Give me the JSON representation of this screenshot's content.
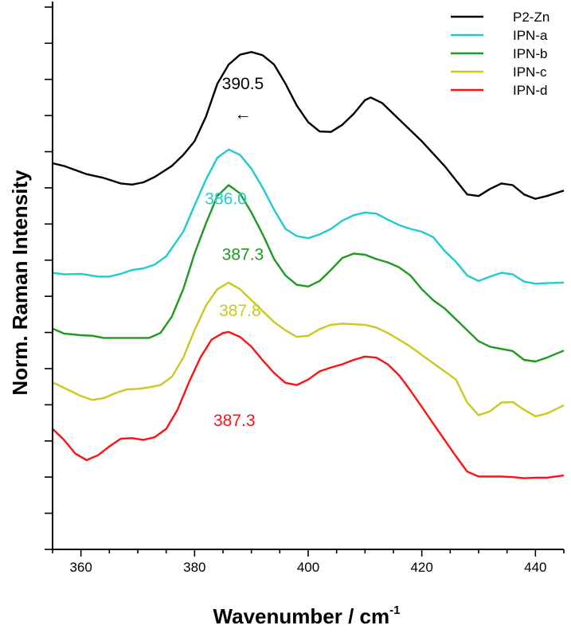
{
  "chart_data": {
    "type": "line",
    "xlabel": "Wavenumber / cm",
    "xlabel_superscript": "-1",
    "ylabel": "Norm. Raman Intensity",
    "xlim": [
      355,
      445
    ],
    "ylim": [
      0,
      100
    ],
    "x_ticks": [
      360,
      380,
      400,
      420,
      440
    ],
    "y_ticks_shown_without_labels": true,
    "grid": false,
    "legend_position": "top-right",
    "series": [
      {
        "name": "P2-Zn",
        "color": "#000000",
        "x": [
          355,
          357,
          361,
          364,
          367,
          369,
          371,
          373,
          376,
          378,
          380,
          382,
          384,
          386,
          388,
          390,
          392,
          394,
          396,
          398,
          400,
          402,
          404,
          406,
          408,
          410,
          411,
          413,
          416,
          420,
          424,
          428,
          430,
          432,
          434,
          436,
          438,
          440,
          442,
          445
        ],
        "y": [
          70.5,
          70.0,
          68.5,
          67.8,
          66.8,
          66.6,
          67.0,
          68.0,
          70.0,
          72.0,
          74.5,
          79.0,
          85.0,
          88.5,
          90.3,
          90.8,
          90.2,
          88.5,
          85.0,
          81.0,
          78.0,
          76.3,
          76.2,
          77.5,
          79.5,
          82.0,
          82.5,
          81.5,
          78.5,
          74.5,
          70.0,
          64.8,
          64.5,
          65.8,
          66.8,
          66.5,
          64.8,
          64.0,
          64.5,
          65.5
        ],
        "label": "390.5"
      },
      {
        "name": "IPN-a",
        "color": "#1fcbcf",
        "x": [
          355,
          357,
          360,
          363,
          365,
          367,
          369,
          371,
          373,
          375,
          378,
          380,
          382,
          384,
          386,
          388,
          390,
          392,
          394,
          396,
          398,
          400,
          402,
          404,
          406,
          408,
          410,
          412,
          414,
          416,
          418,
          420,
          422,
          424,
          426,
          428,
          430,
          432,
          434,
          436,
          438,
          440,
          442,
          445
        ],
        "y": [
          50.5,
          50.2,
          50.3,
          49.8,
          49.8,
          50.3,
          51.0,
          51.3,
          52.0,
          53.5,
          58.0,
          62.8,
          67.5,
          71.5,
          73.0,
          72.0,
          69.5,
          66.0,
          62.0,
          58.5,
          57.2,
          56.8,
          57.5,
          58.5,
          60.0,
          61.0,
          61.5,
          61.3,
          60.2,
          59.2,
          58.5,
          58.0,
          57.0,
          54.5,
          52.5,
          50.0,
          49.0,
          49.8,
          50.5,
          50.2,
          48.9,
          48.5,
          48.6,
          48.7
        ],
        "label": "386.0"
      },
      {
        "name": "IPN-b",
        "color": "#1e9a1e",
        "x": [
          355,
          357,
          360,
          362,
          364,
          366,
          368,
          370,
          372,
          374,
          376,
          378,
          380,
          382,
          384,
          386,
          388,
          390,
          392,
          394,
          396,
          398,
          400,
          402,
          404,
          406,
          408,
          410,
          412,
          414,
          416,
          418,
          420,
          422,
          424,
          426,
          428,
          430,
          432,
          434,
          436,
          438,
          440,
          442,
          445
        ],
        "y": [
          40.3,
          39.4,
          39.1,
          39.0,
          38.6,
          38.6,
          38.6,
          38.6,
          38.6,
          39.5,
          42.5,
          47.5,
          54.0,
          59.5,
          64.5,
          66.5,
          65.0,
          61.5,
          57.5,
          53.0,
          50.0,
          48.3,
          48.0,
          49.0,
          51.0,
          53.2,
          54.0,
          53.8,
          53.0,
          52.4,
          51.5,
          50.0,
          47.5,
          45.5,
          44.0,
          42.0,
          40.0,
          38.0,
          37.0,
          36.6,
          36.2,
          34.6,
          34.3,
          35.0,
          36.3
        ],
        "label": "387.3"
      },
      {
        "name": "IPN-c",
        "color": "#c9c91f",
        "x": [
          355,
          357,
          360,
          362,
          364,
          366,
          368,
          370,
          372,
          374,
          376,
          378,
          380,
          382,
          384,
          386,
          388,
          390,
          392,
          394,
          396,
          398,
          400,
          402,
          404,
          406,
          408,
          410,
          412,
          414,
          416,
          418,
          420,
          422,
          424,
          426,
          428,
          430,
          432,
          434,
          436,
          438,
          440,
          442,
          445
        ],
        "y": [
          30.5,
          29.5,
          28.0,
          27.3,
          27.6,
          28.5,
          29.2,
          29.3,
          29.6,
          30.0,
          31.5,
          35.0,
          40.0,
          44.5,
          47.5,
          48.7,
          47.5,
          45.5,
          43.5,
          41.5,
          40.0,
          38.8,
          39.0,
          40.2,
          41.0,
          41.2,
          41.1,
          41.0,
          40.5,
          39.5,
          38.3,
          37.0,
          35.5,
          34.0,
          32.5,
          31.0,
          26.8,
          24.5,
          25.2,
          26.8,
          26.9,
          25.5,
          24.3,
          24.8,
          26.3
        ],
        "label": "387.8"
      },
      {
        "name": "IPN-d",
        "color": "#ff1111",
        "x": [
          355,
          357,
          359,
          361,
          363,
          365,
          367,
          369,
          371,
          373,
          375,
          377,
          379,
          381,
          383,
          385,
          386,
          388,
          390,
          392,
          394,
          396,
          398,
          400,
          402,
          404,
          406,
          408,
          410,
          412,
          414,
          416,
          418,
          420,
          422,
          424,
          426,
          428,
          430,
          432,
          434,
          436,
          438,
          440,
          442,
          445
        ],
        "y": [
          22.0,
          20.0,
          17.5,
          16.3,
          17.2,
          18.8,
          20.2,
          20.3,
          20.0,
          20.5,
          22.0,
          25.5,
          30.5,
          35.0,
          38.3,
          39.5,
          39.7,
          38.8,
          37.0,
          34.5,
          32.2,
          30.4,
          30.0,
          31.0,
          32.5,
          33.2,
          33.8,
          34.6,
          35.2,
          35.0,
          33.8,
          31.8,
          29.0,
          26.0,
          23.0,
          20.0,
          17.0,
          14.2,
          13.3,
          13.3,
          13.3,
          13.2,
          13.0,
          13.1,
          13.1,
          13.5
        ],
        "label": "387.3"
      }
    ],
    "annotations": [
      {
        "text": "390.5",
        "color": "#000000",
        "x": 388.5,
        "y": 84.0
      },
      {
        "text": "←",
        "color": "#000000",
        "x": 388.5,
        "y": 78.5
      },
      {
        "text": "386.0",
        "color": "#1fcbcf",
        "x": 385.5,
        "y": 63.0
      },
      {
        "text": "387.3",
        "color": "#1e9a1e",
        "x": 388.5,
        "y": 52.8
      },
      {
        "text": "387.8",
        "color": "#c9c91f",
        "x": 388.0,
        "y": 42.6
      },
      {
        "text": "387.3",
        "color": "#ff1111",
        "x": 387.0,
        "y": 22.5
      }
    ]
  }
}
